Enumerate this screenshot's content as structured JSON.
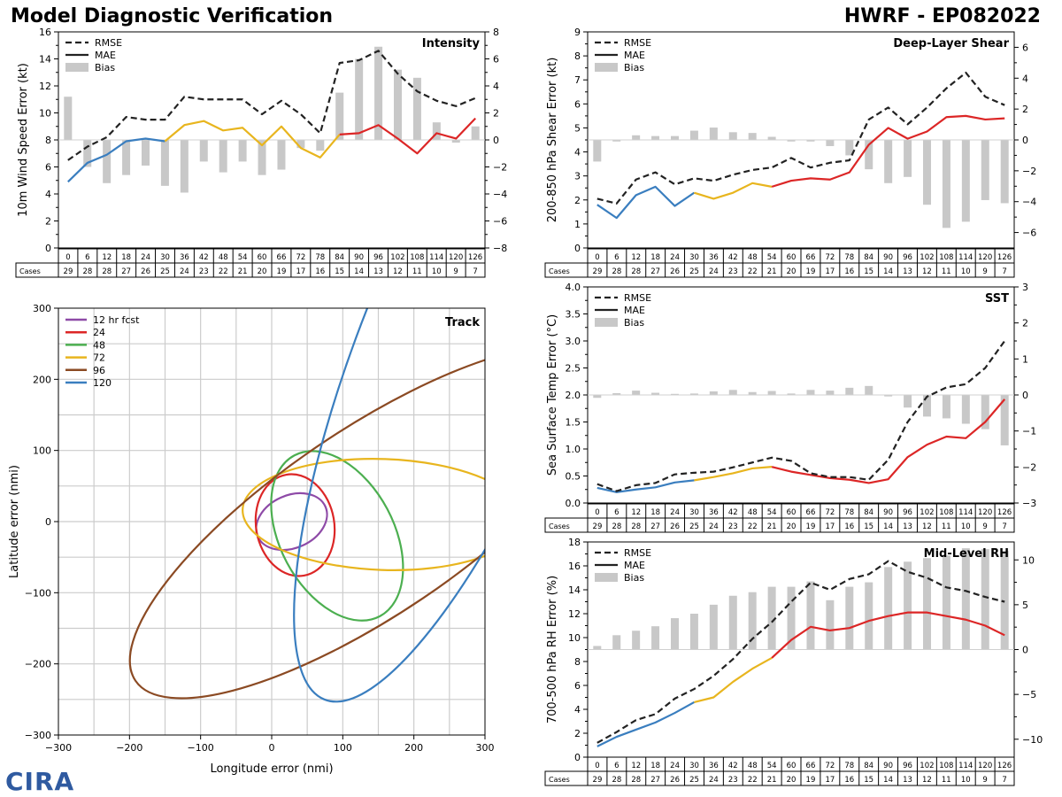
{
  "header": {
    "title": "Model Diagnostic Verification",
    "storm": "HWRF - EP082022"
  },
  "logo": {
    "text": "CIRA"
  },
  "legend_labels": {
    "rmse": "RMSE",
    "mae": "MAE",
    "bias": "Bias"
  },
  "colors": {
    "rmse": "#222222",
    "bias": "#c8c8c8",
    "mae_segments": [
      "#3a7ebf",
      "#e8b51e",
      "#dc2626"
    ],
    "track": [
      "#8e4aa7",
      "#dc2626",
      "#4caf50",
      "#e8b51e",
      "#8b4a23",
      "#3a7ebf"
    ]
  },
  "table": {
    "cases_label": "Cases",
    "hours": [
      "0",
      "6",
      "12",
      "18",
      "24",
      "30",
      "36",
      "42",
      "48",
      "54",
      "60",
      "66",
      "72",
      "78",
      "84",
      "90",
      "96",
      "102",
      "108",
      "114",
      "120",
      "126"
    ],
    "cases": [
      "29",
      "28",
      "28",
      "27",
      "26",
      "25",
      "24",
      "23",
      "22",
      "21",
      "20",
      "19",
      "17",
      "16",
      "15",
      "14",
      "13",
      "12",
      "11",
      "10",
      "9",
      "7"
    ]
  },
  "chart_data": [
    {
      "id": "intensity",
      "type": "line+bar",
      "title": "Intensity",
      "ylabel": "10m Wind Speed Error (kt)",
      "ylim": [
        0,
        16
      ],
      "yticks": [
        0,
        2,
        4,
        6,
        8,
        10,
        12,
        14,
        16
      ],
      "y2lim": [
        -8,
        8
      ],
      "y2ticks": [
        -8,
        -6,
        -4,
        -2,
        0,
        2,
        4,
        6,
        8
      ],
      "x": [
        0,
        6,
        12,
        18,
        24,
        30,
        36,
        42,
        48,
        54,
        60,
        66,
        72,
        78,
        84,
        90,
        96,
        102,
        108,
        114,
        120,
        126
      ],
      "rmse": [
        6.5,
        7.5,
        8.2,
        9.7,
        9.5,
        9.5,
        11.2,
        11.0,
        11.0,
        11.0,
        9.9,
        10.9,
        9.9,
        8.5,
        13.7,
        13.9,
        14.6,
        12.9,
        11.6,
        10.9,
        10.5,
        11.1
      ],
      "mae": [
        4.9,
        6.3,
        6.9,
        7.9,
        8.1,
        7.9,
        9.1,
        9.4,
        8.7,
        8.9,
        7.6,
        9.0,
        7.4,
        6.7,
        8.4,
        8.5,
        9.1,
        8.1,
        7.0,
        8.5,
        8.1,
        9.6
      ],
      "bias": [
        3.2,
        -2.0,
        -3.2,
        -2.6,
        -1.9,
        -3.4,
        -3.9,
        -1.6,
        -2.4,
        -1.6,
        -2.6,
        -2.2,
        -0.6,
        -0.8,
        3.5,
        6.0,
        6.9,
        5.2,
        4.6,
        1.3,
        -0.2,
        1.0
      ],
      "mae_color_breaks": [
        5,
        14
      ]
    },
    {
      "id": "shear",
      "type": "line+bar",
      "title": "Deep-Layer Shear",
      "ylabel": "200-850 hPa Shear Error (kt)",
      "ylim": [
        0,
        9
      ],
      "yticks": [
        0,
        1,
        2,
        3,
        4,
        5,
        6,
        7,
        8,
        9
      ],
      "y2lim": [
        -7,
        7
      ],
      "y2ticks": [
        -6,
        -4,
        -2,
        0,
        2,
        4,
        6
      ],
      "x": [
        0,
        6,
        12,
        18,
        24,
        30,
        36,
        42,
        48,
        54,
        60,
        66,
        72,
        78,
        84,
        90,
        96,
        102,
        108,
        114,
        120,
        126
      ],
      "rmse": [
        2.05,
        1.85,
        2.85,
        3.15,
        2.65,
        2.9,
        2.8,
        3.05,
        3.25,
        3.35,
        3.75,
        3.35,
        3.55,
        3.65,
        5.35,
        5.85,
        5.15,
        5.85,
        6.65,
        7.3,
        6.3,
        5.95
      ],
      "mae": [
        1.8,
        1.25,
        2.2,
        2.55,
        1.75,
        2.3,
        2.05,
        2.3,
        2.7,
        2.55,
        2.8,
        2.9,
        2.85,
        3.15,
        4.3,
        5.0,
        4.55,
        4.85,
        5.45,
        5.5,
        5.35,
        5.4
      ],
      "bias": [
        -1.4,
        -0.1,
        0.3,
        0.25,
        0.25,
        0.6,
        0.8,
        0.5,
        0.45,
        0.2,
        -0.1,
        -0.1,
        -0.4,
        -1.0,
        -1.9,
        -2.8,
        -2.4,
        -4.2,
        -5.7,
        -5.3,
        -3.9,
        -4.1
      ],
      "mae_color_breaks": [
        5,
        9
      ]
    },
    {
      "id": "sst",
      "type": "line+bar",
      "title": "SST",
      "ylabel": "Sea Surface Temp Error (°C)",
      "ylim": [
        0,
        4
      ],
      "yticks": [
        0.0,
        0.5,
        1.0,
        1.5,
        2.0,
        2.5,
        3.0,
        3.5,
        4.0
      ],
      "y2lim": [
        -3,
        3
      ],
      "y2ticks": [
        -3,
        -2,
        -1,
        0,
        1,
        2,
        3
      ],
      "x": [
        0,
        6,
        12,
        18,
        24,
        30,
        36,
        42,
        48,
        54,
        60,
        66,
        72,
        78,
        84,
        90,
        96,
        102,
        108,
        114,
        120,
        126
      ],
      "rmse": [
        0.35,
        0.22,
        0.33,
        0.37,
        0.53,
        0.56,
        0.58,
        0.66,
        0.75,
        0.84,
        0.78,
        0.55,
        0.48,
        0.48,
        0.43,
        0.8,
        1.5,
        1.97,
        2.14,
        2.2,
        2.5,
        3.0
      ],
      "mae": [
        0.28,
        0.2,
        0.25,
        0.29,
        0.38,
        0.42,
        0.48,
        0.55,
        0.64,
        0.67,
        0.58,
        0.52,
        0.46,
        0.43,
        0.37,
        0.44,
        0.85,
        1.08,
        1.23,
        1.2,
        1.5,
        1.92
      ],
      "bias": [
        -0.08,
        0.05,
        0.12,
        0.06,
        0.03,
        0.04,
        0.1,
        0.14,
        0.08,
        0.11,
        0.04,
        0.14,
        0.12,
        0.2,
        0.25,
        -0.04,
        -0.35,
        -0.6,
        -0.65,
        -0.8,
        -0.95,
        -1.4
      ],
      "mae_color_breaks": [
        5,
        9
      ]
    },
    {
      "id": "rh",
      "type": "line+bar",
      "title": "Mid-Level RH",
      "ylabel": "700-500 hPa RH Error (%)",
      "ylim": [
        0,
        18
      ],
      "yticks": [
        0,
        2,
        4,
        6,
        8,
        10,
        12,
        14,
        16,
        18
      ],
      "y2lim": [
        -12,
        12
      ],
      "y2ticks": [
        -10,
        -5,
        0,
        5,
        10
      ],
      "x": [
        0,
        6,
        12,
        18,
        24,
        30,
        36,
        42,
        48,
        54,
        60,
        66,
        72,
        78,
        84,
        90,
        96,
        102,
        108,
        114,
        120,
        126
      ],
      "rmse": [
        1.2,
        2.1,
        3.1,
        3.6,
        4.9,
        5.7,
        6.8,
        8.2,
        9.9,
        11.3,
        13.0,
        14.6,
        14.0,
        14.9,
        15.3,
        16.4,
        15.5,
        15.0,
        14.2,
        13.9,
        13.4,
        13.0
      ],
      "mae": [
        0.9,
        1.7,
        2.3,
        2.9,
        3.7,
        4.6,
        5.0,
        6.3,
        7.4,
        8.3,
        9.8,
        10.9,
        10.6,
        10.8,
        11.4,
        11.8,
        12.1,
        12.1,
        11.8,
        11.5,
        11.0,
        10.2
      ],
      "bias": [
        0.4,
        1.6,
        2.1,
        2.6,
        3.5,
        4.0,
        5.0,
        6.0,
        6.4,
        7.0,
        7.0,
        7.6,
        5.5,
        7.0,
        7.5,
        9.2,
        9.8,
        10.2,
        10.5,
        11.3,
        11.2,
        11.0
      ],
      "mae_color_breaks": [
        5,
        9
      ]
    },
    {
      "id": "track",
      "type": "ellipse",
      "title": "Track",
      "xlabel": "Longitude error (nmi)",
      "ylabel": "Latitude error (nmi)",
      "xlim": [
        -300,
        300
      ],
      "ylim": [
        -300,
        300
      ],
      "ticks": [
        -300,
        -200,
        -100,
        0,
        100,
        200,
        300
      ],
      "grid_step": 50,
      "series": [
        {
          "name": "12 hr fcst",
          "cx": 28,
          "cy": 0,
          "rx": 52,
          "ry": 37,
          "angle": 24
        },
        {
          "name": "24",
          "cx": 33,
          "cy": -5,
          "rx": 72,
          "ry": 55,
          "angle": 100
        },
        {
          "name": "48",
          "cx": 92,
          "cy": -20,
          "rx": 128,
          "ry": 80,
          "angle": 118
        },
        {
          "name": "72",
          "cx": 157,
          "cy": 10,
          "rx": 198,
          "ry": 78,
          "angle": 178
        },
        {
          "name": "96",
          "cx": 140,
          "cy": 0,
          "rx": 400,
          "ry": 130,
          "angle": 34
        },
        {
          "name": "120",
          "cx": 280,
          "cy": 260,
          "rx": 550,
          "ry": 150,
          "angle": 68
        }
      ]
    }
  ]
}
